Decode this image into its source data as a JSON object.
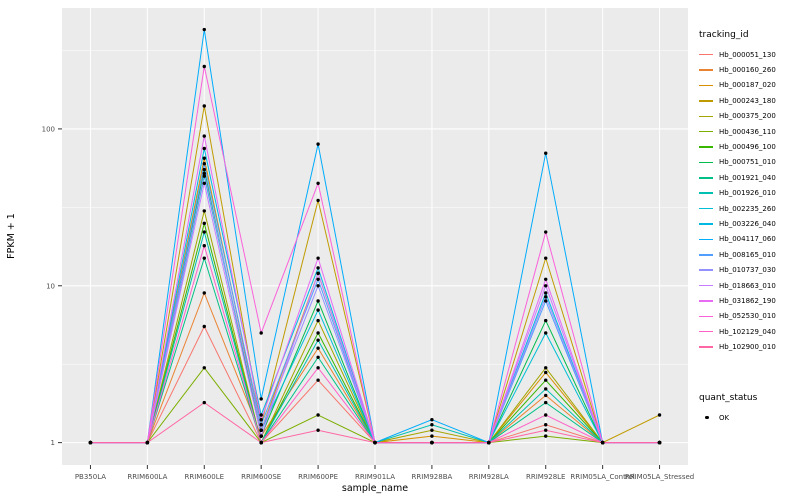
{
  "figure": {
    "y_axis_title": "FPKM + 1",
    "x_axis_title": "sample_name",
    "y_ticks": [
      "1",
      "10",
      "100"
    ],
    "legend": {
      "tracking_title": "tracking_id",
      "quant_title": "quant_status",
      "quant_items": [
        {
          "label": "OK"
        }
      ]
    }
  },
  "chart_data": {
    "type": "line",
    "title": "",
    "xlabel": "sample_name",
    "ylabel": "FPKM + 1",
    "y_scale": "log10",
    "ylim": [
      0.72,
      590
    ],
    "y_major_ticks": [
      1,
      10,
      100
    ],
    "y_minor_ticks": [
      3.1623,
      31.623,
      316.23
    ],
    "grid": true,
    "legend_position": "right",
    "point_legend": "OK",
    "colors": {
      "panel": "#EBEBEB",
      "grid_major": "#FFFFFF",
      "grid_minor": "#FFFFFF",
      "points": "#000000",
      "tick_text": "#4D4D4D",
      "tick_mark": "#333333"
    },
    "categories": [
      "PB350LA",
      "RRIM600LA",
      "RRIM600LE",
      "RRIM600SE",
      "RRIM600PE",
      "RRIM901LA",
      "RRIM928BA",
      "RRIM928LA",
      "RRIM928LE",
      "RRIM05LA_Control",
      "RRIM05LA_Stressed"
    ],
    "series": [
      {
        "name": "Hb_000051_130",
        "color": "#F8766D",
        "values": [
          1,
          1,
          5.5,
          1,
          2.5,
          1,
          1,
          1,
          1.3,
          1,
          1
        ]
      },
      {
        "name": "Hb_000160_260",
        "color": "#EA8331",
        "values": [
          1,
          1,
          9,
          1.1,
          4,
          1,
          1,
          1,
          2,
          1,
          1
        ]
      },
      {
        "name": "Hb_000187_020",
        "color": "#D89000",
        "values": [
          1,
          1,
          65,
          1.2,
          12,
          1,
          1.1,
          1,
          2.8,
          1,
          1
        ]
      },
      {
        "name": "Hb_000243_180",
        "color": "#C09B00",
        "values": [
          1,
          1,
          140,
          1.3,
          35,
          1,
          1,
          1,
          15,
          1,
          1.5
        ]
      },
      {
        "name": "Hb_000375_200",
        "color": "#A3A500",
        "values": [
          1,
          1,
          30,
          1,
          6,
          1,
          1.2,
          1,
          3,
          1,
          1
        ]
      },
      {
        "name": "Hb_000436_110",
        "color": "#7CAE00",
        "values": [
          1,
          1,
          3,
          1,
          1.5,
          1,
          1,
          1,
          1.1,
          1,
          1
        ]
      },
      {
        "name": "Hb_000496_100",
        "color": "#39B600",
        "values": [
          1,
          1,
          25,
          1,
          5,
          1,
          1,
          1,
          2.5,
          1,
          1
        ]
      },
      {
        "name": "Hb_000751_010",
        "color": "#00BB4E",
        "values": [
          1,
          1,
          55,
          1.1,
          8,
          1,
          1,
          1,
          6,
          1,
          1
        ]
      },
      {
        "name": "Hb_001921_040",
        "color": "#00C087",
        "values": [
          1,
          1,
          15,
          1,
          3.5,
          1,
          1,
          1,
          1.8,
          1,
          1
        ]
      },
      {
        "name": "Hb_001926_010",
        "color": "#00C0B2",
        "values": [
          1,
          1,
          22,
          1,
          4.5,
          1,
          1.3,
          1,
          2.2,
          1,
          1
        ]
      },
      {
        "name": "Hb_002235_260",
        "color": "#00BFD6",
        "values": [
          1,
          1,
          50,
          1.2,
          7,
          1,
          1,
          1,
          5,
          1,
          1
        ]
      },
      {
        "name": "Hb_003226_040",
        "color": "#00B9E3",
        "values": [
          1,
          1,
          75,
          1.5,
          13,
          1,
          1,
          1,
          9,
          1,
          1
        ]
      },
      {
        "name": "Hb_004117_060",
        "color": "#00ACFC",
        "values": [
          1,
          1,
          430,
          1.9,
          80,
          1,
          1.4,
          1,
          70,
          1,
          1
        ]
      },
      {
        "name": "Hb_008165_010",
        "color": "#529EFF",
        "values": [
          1,
          1,
          60,
          1.3,
          11,
          1,
          1,
          1,
          8,
          1,
          1
        ]
      },
      {
        "name": "Hb_010737_030",
        "color": "#9590FF",
        "values": [
          1,
          1,
          52,
          1.2,
          10,
          1,
          1,
          1,
          8.5,
          1,
          1
        ]
      },
      {
        "name": "Hb_018663_010",
        "color": "#C77CFF",
        "values": [
          1,
          1,
          45,
          1.1,
          12,
          1,
          1,
          1,
          10,
          1,
          1
        ]
      },
      {
        "name": "Hb_031862_190",
        "color": "#E76BF3",
        "values": [
          1,
          1,
          90,
          1.4,
          15,
          1,
          1,
          1,
          11,
          1,
          1
        ]
      },
      {
        "name": "Hb_052530_010",
        "color": "#FA62DB",
        "values": [
          1,
          1,
          250,
          5,
          45,
          1,
          1,
          1,
          22,
          1,
          1
        ]
      },
      {
        "name": "Hb_102129_040",
        "color": "#FF61C9",
        "values": [
          1,
          1,
          18,
          1,
          3,
          1,
          1,
          1,
          1.5,
          1,
          1
        ]
      },
      {
        "name": "Hb_102900_010",
        "color": "#FF67A4",
        "values": [
          1,
          1,
          1.8,
          1,
          1.2,
          1,
          1,
          1,
          1.2,
          1,
          1
        ]
      }
    ]
  }
}
